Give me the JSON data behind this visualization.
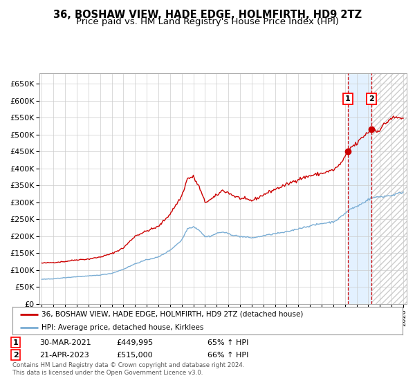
{
  "title": "36, BOSHAW VIEW, HADE EDGE, HOLMFIRTH, HD9 2TZ",
  "subtitle": "Price paid vs. HM Land Registry's House Price Index (HPI)",
  "legend_line1": "36, BOSHAW VIEW, HADE EDGE, HOLMFIRTH, HD9 2TZ (detached house)",
  "legend_line2": "HPI: Average price, detached house, Kirklees",
  "annotation1_date": "30-MAR-2021",
  "annotation1_price": "£449,995",
  "annotation1_hpi": "65% ↑ HPI",
  "annotation2_date": "21-APR-2023",
  "annotation2_price": "£515,000",
  "annotation2_hpi": "66% ↑ HPI",
  "footnote1": "Contains HM Land Registry data © Crown copyright and database right 2024.",
  "footnote2": "This data is licensed under the Open Government Licence v3.0.",
  "marker1_year": 2021.25,
  "marker1_value": 449995,
  "marker2_year": 2023.3,
  "marker2_value": 515000,
  "vline1_year": 2021.25,
  "vline2_year": 2023.3,
  "shade_start": 2021.25,
  "shade_end": 2023.3,
  "hatch_start": 2023.3,
  "hatch_end": 2026.5,
  "ylim": [
    0,
    680000
  ],
  "xlim_start": 1994.8,
  "xlim_end": 2026.3,
  "red_color": "#cc0000",
  "blue_color": "#7aadd4",
  "background_color": "#ffffff",
  "grid_color": "#cccccc",
  "title_fontsize": 10.5,
  "subtitle_fontsize": 9.5,
  "red_anchors": {
    "1995.0": 120000,
    "1996.0": 122000,
    "1997.0": 125000,
    "1998.0": 130000,
    "1999.0": 132000,
    "2000.0": 138000,
    "2001.0": 148000,
    "2002.0": 165000,
    "2003.0": 200000,
    "2004.0": 215000,
    "2005.0": 228000,
    "2006.0": 265000,
    "2007.0": 318000,
    "2007.5": 370000,
    "2008.0": 375000,
    "2008.5": 345000,
    "2009.0": 300000,
    "2009.5": 308000,
    "2010.0": 320000,
    "2010.5": 335000,
    "2011.0": 328000,
    "2011.5": 318000,
    "2012.0": 312000,
    "2012.5": 308000,
    "2013.0": 305000,
    "2013.5": 312000,
    "2014.0": 322000,
    "2015.0": 338000,
    "2016.0": 352000,
    "2017.0": 368000,
    "2018.0": 378000,
    "2019.0": 385000,
    "2020.0": 395000,
    "2020.5": 408000,
    "2021.0": 432000,
    "2021.25": 449995,
    "2021.5": 462000,
    "2022.0": 472000,
    "2022.5": 492000,
    "2023.0": 507000,
    "2023.3": 515000,
    "2023.5": 516000,
    "2023.75": 508000,
    "2024.0": 516000,
    "2024.25": 526000,
    "2024.5": 532000,
    "2024.75": 542000,
    "2025.0": 548000,
    "2025.5": 550000,
    "2026.0": 548000
  },
  "blue_anchors": {
    "1995.0": 72000,
    "1996.0": 74000,
    "1997.0": 77000,
    "1998.0": 80000,
    "1999.0": 82000,
    "2000.0": 85000,
    "2001.0": 90000,
    "2002.0": 102000,
    "2003.0": 118000,
    "2004.0": 130000,
    "2005.0": 138000,
    "2006.0": 158000,
    "2007.0": 188000,
    "2007.5": 222000,
    "2008.0": 228000,
    "2008.5": 218000,
    "2009.0": 198000,
    "2009.5": 200000,
    "2010.0": 208000,
    "2010.5": 212000,
    "2011.0": 207000,
    "2011.5": 202000,
    "2012.0": 199000,
    "2012.5": 197000,
    "2013.0": 195000,
    "2013.5": 197000,
    "2014.0": 201000,
    "2015.0": 207000,
    "2016.0": 212000,
    "2017.0": 222000,
    "2018.0": 230000,
    "2019.0": 237000,
    "2020.0": 242000,
    "2020.5": 252000,
    "2021.0": 267000,
    "2021.25": 274000,
    "2021.5": 280000,
    "2022.0": 287000,
    "2022.5": 297000,
    "2023.0": 308000,
    "2023.3": 312000,
    "2023.5": 314000,
    "2023.75": 315000,
    "2024.0": 316000,
    "2024.5": 318000,
    "2025.0": 320000,
    "2025.5": 325000,
    "2026.0": 330000
  }
}
